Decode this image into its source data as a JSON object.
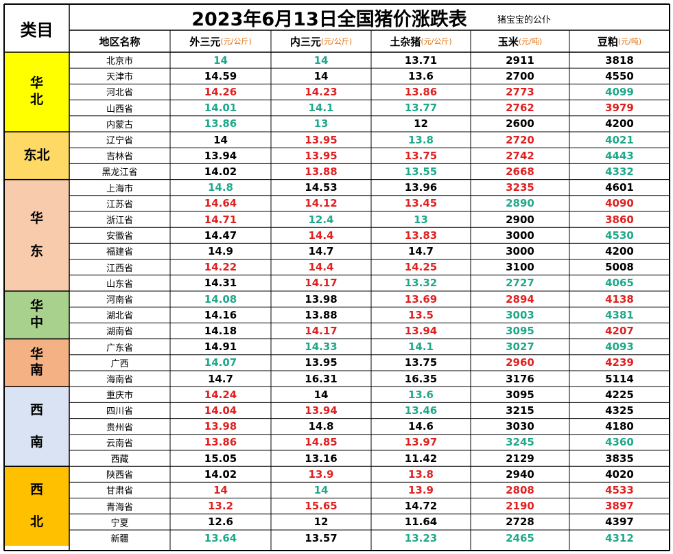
{
  "header": {
    "category_title": "类目",
    "title": "2023年6月13日全国猪价涨跌表",
    "subtitle": "猪宝宝的公仆"
  },
  "columns": [
    {
      "label": "地区名称",
      "unit": ""
    },
    {
      "label": "外三元",
      "unit": "(元/公斤)"
    },
    {
      "label": "内三元",
      "unit": "(元/公斤)"
    },
    {
      "label": "土杂猪",
      "unit": "(元/公斤)"
    },
    {
      "label": "玉米",
      "unit": "(元/吨)"
    },
    {
      "label": "豆粕",
      "unit": "(元/吨)"
    }
  ],
  "colors": {
    "normal": "#000000",
    "up": "#e02020",
    "down": "#1fa88a",
    "unit": "#e36c09"
  },
  "categories": [
    {
      "label": "华\n北",
      "rows": 5,
      "color": "#ffff00"
    },
    {
      "label": "东北",
      "rows": 3,
      "color": "#ffd966"
    },
    {
      "label": "华\n\n东",
      "rows": 7,
      "color": "#f8cbad"
    },
    {
      "label": "华\n中",
      "rows": 3,
      "color": "#a9d18e"
    },
    {
      "label": "华\n南",
      "rows": 3,
      "color": "#f4b183"
    },
    {
      "label": "西\n\n南",
      "rows": 5,
      "color": "#dae3f3"
    },
    {
      "label": "西\n\n北",
      "rows": 5,
      "color": "#ffc000"
    }
  ],
  "rows": [
    {
      "region": "北京市",
      "values": [
        "14",
        "14",
        "13.71",
        "2911",
        "3818"
      ],
      "colors": [
        "g",
        "g",
        "n",
        "n",
        "n"
      ]
    },
    {
      "region": "天津市",
      "values": [
        "14.59",
        "14",
        "13.6",
        "2700",
        "4550"
      ],
      "colors": [
        "n",
        "n",
        "n",
        "n",
        "n"
      ]
    },
    {
      "region": "河北省",
      "values": [
        "14.26",
        "14.23",
        "13.86",
        "2773",
        "4099"
      ],
      "colors": [
        "r",
        "r",
        "r",
        "r",
        "g"
      ]
    },
    {
      "region": "山西省",
      "values": [
        "14.01",
        "14.1",
        "13.77",
        "2762",
        "3979"
      ],
      "colors": [
        "g",
        "g",
        "g",
        "r",
        "r"
      ]
    },
    {
      "region": "内蒙古",
      "values": [
        "13.86",
        "13",
        "12",
        "2600",
        "4200"
      ],
      "colors": [
        "g",
        "g",
        "n",
        "n",
        "n"
      ]
    },
    {
      "region": "辽宁省",
      "values": [
        "14",
        "13.95",
        "13.8",
        "2720",
        "4021"
      ],
      "colors": [
        "n",
        "r",
        "g",
        "r",
        "g"
      ]
    },
    {
      "region": "吉林省",
      "values": [
        "13.94",
        "13.95",
        "13.75",
        "2742",
        "4443"
      ],
      "colors": [
        "n",
        "r",
        "r",
        "r",
        "g"
      ]
    },
    {
      "region": "黑龙江省",
      "values": [
        "14.02",
        "13.88",
        "13.55",
        "2668",
        "4332"
      ],
      "colors": [
        "n",
        "r",
        "g",
        "r",
        "g"
      ]
    },
    {
      "region": "上海市",
      "values": [
        "14.8",
        "14.53",
        "13.96",
        "3235",
        "4601"
      ],
      "colors": [
        "g",
        "n",
        "n",
        "r",
        "n"
      ]
    },
    {
      "region": "江苏省",
      "values": [
        "14.64",
        "14.12",
        "13.45",
        "2890",
        "4090"
      ],
      "colors": [
        "r",
        "r",
        "r",
        "g",
        "r"
      ]
    },
    {
      "region": "浙江省",
      "values": [
        "14.71",
        "12.4",
        "13",
        "2900",
        "3860"
      ],
      "colors": [
        "r",
        "g",
        "g",
        "n",
        "r"
      ]
    },
    {
      "region": "安徽省",
      "values": [
        "14.47",
        "14.4",
        "13.83",
        "3000",
        "4530"
      ],
      "colors": [
        "n",
        "r",
        "r",
        "n",
        "g"
      ]
    },
    {
      "region": "福建省",
      "values": [
        "14.9",
        "14.7",
        "14.7",
        "3000",
        "4200"
      ],
      "colors": [
        "n",
        "n",
        "n",
        "n",
        "n"
      ]
    },
    {
      "region": "江西省",
      "values": [
        "14.22",
        "14.4",
        "14.25",
        "3100",
        "5008"
      ],
      "colors": [
        "r",
        "r",
        "r",
        "n",
        "n"
      ]
    },
    {
      "region": "山东省",
      "values": [
        "14.31",
        "14.17",
        "13.32",
        "2727",
        "4065"
      ],
      "colors": [
        "n",
        "r",
        "g",
        "g",
        "g"
      ]
    },
    {
      "region": "河南省",
      "values": [
        "14.08",
        "13.98",
        "13.69",
        "2894",
        "4138"
      ],
      "colors": [
        "g",
        "n",
        "r",
        "r",
        "r"
      ]
    },
    {
      "region": "湖北省",
      "values": [
        "14.16",
        "13.88",
        "13.5",
        "3003",
        "4381"
      ],
      "colors": [
        "n",
        "n",
        "r",
        "g",
        "g"
      ]
    },
    {
      "region": "湖南省",
      "values": [
        "14.18",
        "14.17",
        "13.94",
        "3095",
        "4207"
      ],
      "colors": [
        "n",
        "r",
        "r",
        "g",
        "r"
      ]
    },
    {
      "region": "广东省",
      "values": [
        "14.91",
        "14.33",
        "14.1",
        "3027",
        "4093"
      ],
      "colors": [
        "n",
        "g",
        "g",
        "g",
        "g"
      ]
    },
    {
      "region": "广西",
      "values": [
        "14.07",
        "13.95",
        "13.75",
        "2960",
        "4239"
      ],
      "colors": [
        "g",
        "n",
        "n",
        "r",
        "r"
      ]
    },
    {
      "region": "海南省",
      "values": [
        "14.7",
        "16.31",
        "16.35",
        "3176",
        "5114"
      ],
      "colors": [
        "n",
        "n",
        "n",
        "n",
        "n"
      ]
    },
    {
      "region": "重庆市",
      "values": [
        "14.24",
        "14",
        "13.6",
        "3095",
        "4225"
      ],
      "colors": [
        "r",
        "n",
        "g",
        "n",
        "n"
      ]
    },
    {
      "region": "四川省",
      "values": [
        "14.04",
        "13.94",
        "13.46",
        "3215",
        "4325"
      ],
      "colors": [
        "r",
        "r",
        "g",
        "n",
        "n"
      ]
    },
    {
      "region": "贵州省",
      "values": [
        "13.98",
        "14.8",
        "14.6",
        "3030",
        "4180"
      ],
      "colors": [
        "r",
        "n",
        "n",
        "n",
        "n"
      ]
    },
    {
      "region": "云南省",
      "values": [
        "13.86",
        "14.85",
        "13.97",
        "3245",
        "4360"
      ],
      "colors": [
        "r",
        "r",
        "r",
        "g",
        "g"
      ]
    },
    {
      "region": "西藏",
      "values": [
        "15.05",
        "13.16",
        "11.42",
        "2129",
        "3835"
      ],
      "colors": [
        "n",
        "n",
        "n",
        "n",
        "n"
      ]
    },
    {
      "region": "陕西省",
      "values": [
        "14.02",
        "13.9",
        "13.8",
        "2940",
        "4020"
      ],
      "colors": [
        "n",
        "r",
        "r",
        "n",
        "n"
      ]
    },
    {
      "region": "甘肃省",
      "values": [
        "14",
        "14",
        "13.9",
        "2808",
        "4533"
      ],
      "colors": [
        "r",
        "g",
        "r",
        "r",
        "r"
      ]
    },
    {
      "region": "青海省",
      "values": [
        "13.2",
        "15.65",
        "14.72",
        "2190",
        "3897"
      ],
      "colors": [
        "r",
        "r",
        "n",
        "r",
        "r"
      ]
    },
    {
      "region": "宁夏",
      "values": [
        "12.6",
        "12",
        "11.64",
        "2728",
        "4397"
      ],
      "colors": [
        "n",
        "n",
        "n",
        "n",
        "n"
      ]
    },
    {
      "region": "新疆",
      "values": [
        "13.64",
        "13.57",
        "13.23",
        "2465",
        "4312"
      ],
      "colors": [
        "g",
        "n",
        "g",
        "g",
        "g"
      ]
    }
  ]
}
